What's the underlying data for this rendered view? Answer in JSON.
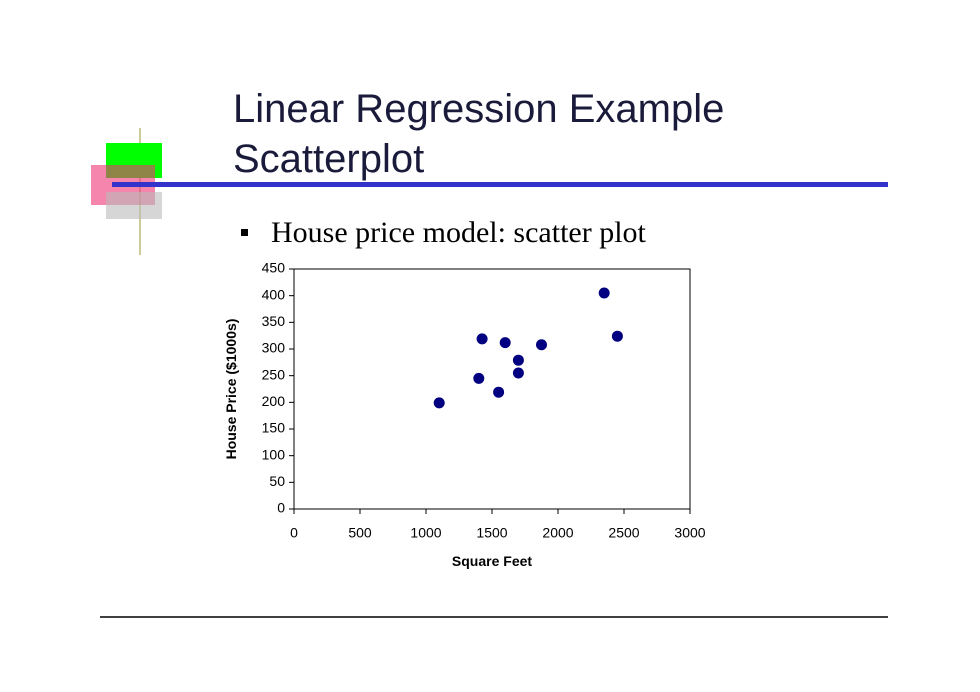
{
  "slide": {
    "title": [
      "Linear Regression Example",
      "Scatterplot"
    ],
    "bullet": "House price model:  scatter plot"
  },
  "chart_data": {
    "type": "scatter",
    "x_label": "Square Feet",
    "y_label": "House Price ($1000s)",
    "x": [
      1400,
      1600,
      1700,
      1875,
      1100,
      1550,
      2350,
      2450,
      1425,
      1700
    ],
    "values": [
      245,
      312,
      279,
      308,
      199,
      219,
      405,
      324,
      319,
      255
    ],
    "color": "#000080",
    "xlim": [
      0,
      3000
    ],
    "xticks": [
      0,
      500,
      1000,
      1500,
      2000,
      2500,
      3000
    ],
    "ylim": [
      0,
      450
    ],
    "yticks": [
      0,
      50,
      100,
      150,
      200,
      250,
      300,
      350,
      400,
      450
    ]
  }
}
